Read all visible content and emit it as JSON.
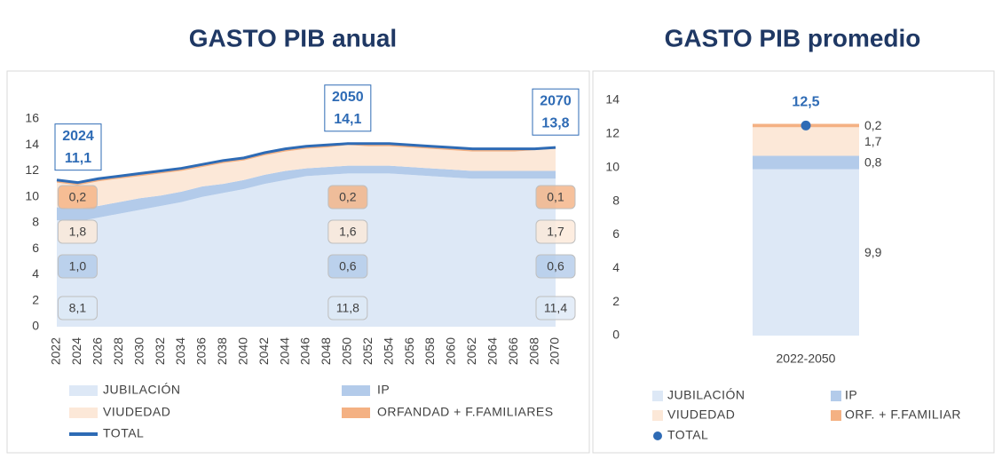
{
  "chart_data": [
    {
      "type": "area",
      "title": "GASTO PIB anual",
      "stacked": true,
      "grid": false,
      "x": [
        2022,
        2024,
        2026,
        2028,
        2030,
        2032,
        2034,
        2036,
        2038,
        2040,
        2042,
        2044,
        2046,
        2048,
        2050,
        2052,
        2054,
        2056,
        2058,
        2060,
        2062,
        2064,
        2066,
        2068,
        2070
      ],
      "xlim": [
        2022,
        2070
      ],
      "xticks": [
        2022,
        2024,
        2026,
        2028,
        2030,
        2032,
        2034,
        2036,
        2038,
        2040,
        2042,
        2044,
        2046,
        2048,
        2050,
        2052,
        2054,
        2056,
        2058,
        2060,
        2062,
        2064,
        2066,
        2068,
        2070
      ],
      "ylim": [
        0,
        16
      ],
      "yticks": [
        0,
        2,
        4,
        6,
        8,
        10,
        12,
        14,
        16
      ],
      "series": [
        {
          "name": "JUBILACIÓN",
          "color": "#dde8f6",
          "values": [
            8.2,
            8.1,
            8.4,
            8.7,
            9.0,
            9.3,
            9.6,
            10.0,
            10.3,
            10.6,
            11.0,
            11.3,
            11.6,
            11.7,
            11.8,
            11.8,
            11.8,
            11.7,
            11.6,
            11.5,
            11.4,
            11.4,
            11.4,
            11.4,
            11.4
          ],
          "value_labels": [
            null,
            "8,1",
            null,
            null,
            null,
            null,
            null,
            null,
            null,
            null,
            null,
            null,
            null,
            null,
            "11,8",
            null,
            null,
            null,
            null,
            null,
            null,
            null,
            null,
            null,
            "11,4"
          ]
        },
        {
          "name": "IP",
          "color": "#b3cbea",
          "values": [
            1.0,
            1.0,
            0.9,
            0.9,
            0.9,
            0.8,
            0.8,
            0.8,
            0.7,
            0.7,
            0.7,
            0.7,
            0.6,
            0.6,
            0.6,
            0.6,
            0.6,
            0.6,
            0.6,
            0.6,
            0.6,
            0.6,
            0.6,
            0.6,
            0.6
          ],
          "value_labels": [
            null,
            "1,0",
            null,
            null,
            null,
            null,
            null,
            null,
            null,
            null,
            null,
            null,
            null,
            null,
            "0,6",
            null,
            null,
            null,
            null,
            null,
            null,
            null,
            null,
            null,
            "0,6"
          ]
        },
        {
          "name": "VIUDEDAD",
          "color": "#fce8d8",
          "values": [
            1.9,
            1.8,
            1.9,
            1.8,
            1.7,
            1.7,
            1.6,
            1.5,
            1.6,
            1.5,
            1.5,
            1.5,
            1.5,
            1.5,
            1.6,
            1.5,
            1.5,
            1.5,
            1.5,
            1.5,
            1.5,
            1.5,
            1.5,
            1.6,
            1.7
          ],
          "value_labels": [
            null,
            "1,8",
            null,
            null,
            null,
            null,
            null,
            null,
            null,
            null,
            null,
            null,
            null,
            null,
            "1,6",
            null,
            null,
            null,
            null,
            null,
            null,
            null,
            null,
            null,
            "1,7"
          ]
        },
        {
          "name": "ORFANDAD + F.FAMILIARES",
          "color": "#f4b183",
          "values": [
            0.2,
            0.2,
            0.2,
            0.2,
            0.2,
            0.2,
            0.2,
            0.2,
            0.2,
            0.2,
            0.2,
            0.2,
            0.2,
            0.2,
            0.2,
            0.2,
            0.2,
            0.2,
            0.2,
            0.2,
            0.2,
            0.2,
            0.2,
            0.1,
            0.1
          ],
          "value_labels": [
            null,
            "0,2",
            null,
            null,
            null,
            null,
            null,
            null,
            null,
            null,
            null,
            null,
            null,
            null,
            "0,2",
            null,
            null,
            null,
            null,
            null,
            null,
            null,
            null,
            null,
            "0,1"
          ]
        },
        {
          "name": "TOTAL",
          "type": "line",
          "color": "#2e6bb5",
          "values": [
            11.3,
            11.1,
            11.4,
            11.6,
            11.8,
            12.0,
            12.2,
            12.5,
            12.8,
            13.0,
            13.4,
            13.7,
            13.9,
            14.0,
            14.1,
            14.1,
            14.1,
            14.0,
            13.9,
            13.8,
            13.7,
            13.7,
            13.7,
            13.7,
            13.8
          ],
          "value_labels": [
            null,
            "11,1",
            null,
            null,
            null,
            null,
            null,
            null,
            null,
            null,
            null,
            null,
            null,
            null,
            "14,1",
            null,
            null,
            null,
            null,
            null,
            null,
            null,
            null,
            null,
            "13,8"
          ]
        }
      ]
    },
    {
      "type": "bar",
      "title": "GASTO PIB promedio",
      "stacked": true,
      "grid": false,
      "categories": [
        "2022-2050"
      ],
      "ylim": [
        0,
        14
      ],
      "yticks": [
        0,
        2,
        4,
        6,
        8,
        10,
        12,
        14
      ],
      "series": [
        {
          "name": "JUBILACIÓN",
          "color": "#dde8f6",
          "values": [
            9.9
          ],
          "value_labels": [
            "9,9"
          ]
        },
        {
          "name": "IP",
          "color": "#b3cbea",
          "values": [
            0.8
          ],
          "value_labels": [
            "0,8"
          ]
        },
        {
          "name": "VIUDEDAD",
          "color": "#fce8d8",
          "values": [
            1.7
          ],
          "value_labels": [
            "1,7"
          ]
        },
        {
          "name": "ORF. + F.FAMILIAR",
          "color": "#f4b183",
          "values": [
            0.2
          ],
          "value_labels": [
            "0,2"
          ]
        },
        {
          "name": "TOTAL",
          "type": "point",
          "color": "#2e6bb5",
          "values": [
            12.5
          ],
          "value_labels": [
            "12,5"
          ]
        }
      ]
    }
  ]
}
